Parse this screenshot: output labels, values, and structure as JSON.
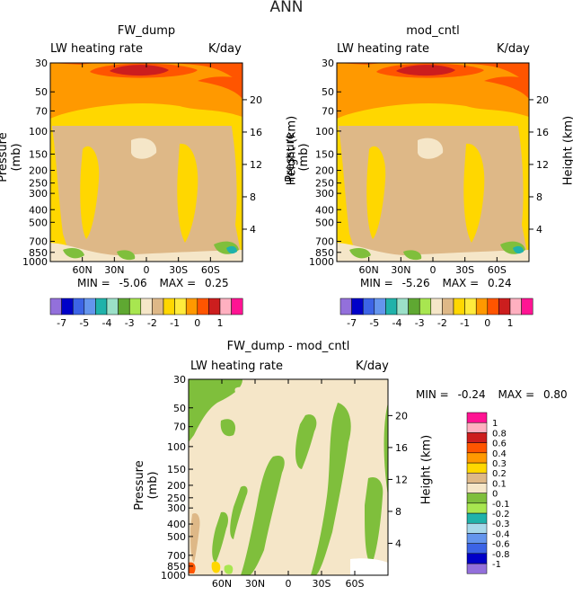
{
  "page_title": "ANN",
  "chart_data": [
    {
      "type": "heatmap",
      "title": "FW_dump",
      "subtitle_left": "LW heating rate",
      "subtitle_right": "K/day",
      "ylabel": "Pressure (mb)",
      "ylabel_right": "Height (km)",
      "x_ticks": [
        "60N",
        "30N",
        "0",
        "30S",
        "60S"
      ],
      "x_values": [
        60,
        30,
        0,
        -30,
        -60
      ],
      "xlim": [
        90,
        -90
      ],
      "pressure_ticks": [
        30,
        50,
        70,
        100,
        150,
        200,
        250,
        300,
        400,
        500,
        700,
        850,
        1000
      ],
      "height_ticks": [
        20,
        16,
        12,
        8,
        4
      ],
      "min_label": "MIN =",
      "min_value": "-5.06",
      "max_label": "MAX =",
      "max_value": "0.25"
    },
    {
      "type": "heatmap",
      "title": "mod_cntl",
      "subtitle_left": "LW heating rate",
      "subtitle_right": "K/day",
      "ylabel": "Pressure (mb)",
      "ylabel_right": "Height (km)",
      "x_ticks": [
        "60N",
        "30N",
        "0",
        "30S",
        "60S"
      ],
      "x_values": [
        60,
        30,
        0,
        -30,
        -60
      ],
      "xlim": [
        90,
        -90
      ],
      "pressure_ticks": [
        30,
        50,
        70,
        100,
        150,
        200,
        250,
        300,
        400,
        500,
        700,
        850,
        1000
      ],
      "height_ticks": [
        20,
        16,
        12,
        8,
        4
      ],
      "min_label": "MIN =",
      "min_value": "-5.26",
      "max_label": "MAX =",
      "max_value": "0.24"
    },
    {
      "type": "heatmap",
      "title": "FW_dump - mod_cntl",
      "subtitle_left": "LW heating rate",
      "subtitle_right": "K/day",
      "ylabel": "Pressure (mb)",
      "ylabel_right": "Height (km)",
      "x_ticks": [
        "60N",
        "30N",
        "0",
        "30S",
        "60S"
      ],
      "x_values": [
        60,
        30,
        0,
        -30,
        -60
      ],
      "xlim": [
        90,
        -90
      ],
      "pressure_ticks": [
        30,
        50,
        70,
        100,
        150,
        200,
        250,
        300,
        400,
        500,
        700,
        850,
        1000
      ],
      "height_ticks": [
        20,
        16,
        12,
        8,
        4
      ],
      "min_label": "MIN =",
      "min_value": "-0.24",
      "max_label": "MAX =",
      "max_value": "0.80"
    }
  ],
  "top_colorbar": {
    "colors": [
      "#9370DB",
      "#0000C8",
      "#3C64E6",
      "#6495ED",
      "#20B2AA",
      "#9BE0C8",
      "#5FA832",
      "#A8E650",
      "#F5E6C8",
      "#DEB887",
      "#FFD700",
      "#FFEB3C",
      "#FF9900",
      "#FF5500",
      "#CC1E1E",
      "#FFB0C0",
      "#FF1493"
    ],
    "labels": [
      "-7",
      "-5",
      "-4",
      "-3",
      "-2",
      "-1",
      "0",
      "1"
    ]
  },
  "diff_colorbar": {
    "colors": [
      "#9370DB",
      "#0000C8",
      "#3C64E6",
      "#6495ED",
      "#A8D8EA",
      "#20B2AA",
      "#A8E650",
      "#7FBF3C",
      "#F5E6C8",
      "#DEB887",
      "#FFD700",
      "#FF9900",
      "#FF5500",
      "#CC1E1E",
      "#FFB0C0",
      "#FF1493"
    ],
    "labels": [
      "-1",
      "-0.8",
      "-0.6",
      "-0.4",
      "-0.3",
      "-0.2",
      "-0.1",
      "0",
      "0.1",
      "0.2",
      "0.3",
      "0.4",
      "0.6",
      "0.8",
      "1"
    ]
  }
}
